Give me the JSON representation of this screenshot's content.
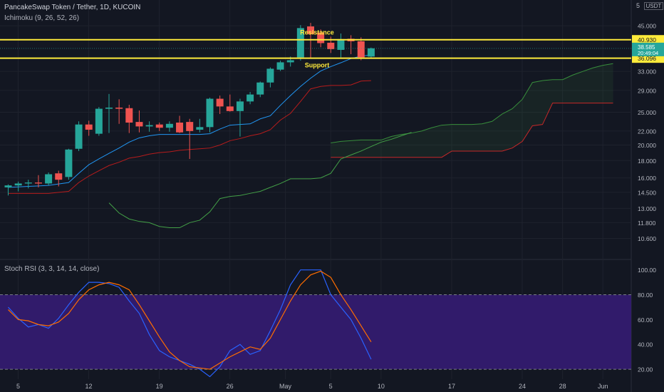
{
  "header": {
    "title": "PancakeSwap Token / Tether, 1D, KUCOIN",
    "indicator": "Ichimoku (9, 26, 52, 26)",
    "scale_top_label": "5",
    "currency": "USDT"
  },
  "oscillator": {
    "label": "Stoch RSI (3, 3, 14, 14, close)"
  },
  "colors": {
    "background": "#131722",
    "up": "#26a69a",
    "down": "#ef5350",
    "conversion": "#2196f3",
    "base": "#b71c1c",
    "lagging": "#43a047",
    "span_a": "#388e3c",
    "span_b": "#c62828",
    "level_line": "#ffeb3b",
    "k_line": "#2962ff",
    "d_line": "#ff6d00",
    "osc_band": "#311b6b"
  },
  "chart_data": [
    {
      "type": "candlestick",
      "x": {
        "tick_labels": [
          "5",
          "12",
          "19",
          "26",
          "May",
          "5",
          "10",
          "17",
          "24",
          "28",
          "Jun"
        ]
      },
      "y": {
        "scale": "log",
        "ylim": [
          9.6,
          47.5
        ],
        "tick_labels": [
          "45.000",
          "33.000",
          "29.000",
          "25.000",
          "22.000",
          "20.000",
          "18.000",
          "16.000",
          "14.500",
          "13.000",
          "11.800",
          "10.600"
        ]
      },
      "candles": [
        {
          "o": 15.0,
          "h": 15.3,
          "l": 14.2,
          "c": 15.2
        },
        {
          "o": 15.2,
          "h": 15.6,
          "l": 14.6,
          "c": 15.4
        },
        {
          "o": 15.4,
          "h": 15.8,
          "l": 14.9,
          "c": 15.5
        },
        {
          "o": 15.5,
          "h": 16.3,
          "l": 15.0,
          "c": 15.4
        },
        {
          "o": 15.4,
          "h": 16.6,
          "l": 15.2,
          "c": 16.4
        },
        {
          "o": 16.5,
          "h": 16.8,
          "l": 15.1,
          "c": 15.8
        },
        {
          "o": 16.1,
          "h": 19.5,
          "l": 15.8,
          "c": 19.4
        },
        {
          "o": 19.5,
          "h": 23.5,
          "l": 19.2,
          "c": 23.0
        },
        {
          "o": 23.0,
          "h": 23.6,
          "l": 21.3,
          "c": 22.2
        },
        {
          "o": 21.6,
          "h": 25.9,
          "l": 21.3,
          "c": 25.6
        },
        {
          "o": 25.6,
          "h": 28.3,
          "l": 21.7,
          "c": 25.8
        },
        {
          "o": 25.8,
          "h": 27.3,
          "l": 23.1,
          "c": 25.6
        },
        {
          "o": 25.7,
          "h": 26.3,
          "l": 21.7,
          "c": 23.3
        },
        {
          "o": 23.4,
          "h": 25.3,
          "l": 21.8,
          "c": 22.7
        },
        {
          "o": 22.7,
          "h": 23.5,
          "l": 21.9,
          "c": 22.9
        },
        {
          "o": 23.0,
          "h": 23.3,
          "l": 22.0,
          "c": 22.5
        },
        {
          "o": 22.5,
          "h": 23.5,
          "l": 21.9,
          "c": 23.1
        },
        {
          "o": 23.3,
          "h": 24.4,
          "l": 21.7,
          "c": 21.8
        },
        {
          "o": 23.4,
          "h": 23.9,
          "l": 18.2,
          "c": 22.0
        },
        {
          "o": 22.2,
          "h": 23.9,
          "l": 21.8,
          "c": 22.6
        },
        {
          "o": 22.6,
          "h": 27.6,
          "l": 21.8,
          "c": 27.4
        },
        {
          "o": 27.4,
          "h": 28.0,
          "l": 24.7,
          "c": 26.0
        },
        {
          "o": 26.0,
          "h": 28.2,
          "l": 25.1,
          "c": 25.2
        },
        {
          "o": 25.2,
          "h": 27.4,
          "l": 21.2,
          "c": 26.9
        },
        {
          "o": 26.9,
          "h": 28.7,
          "l": 26.4,
          "c": 28.2
        },
        {
          "o": 28.2,
          "h": 30.8,
          "l": 27.7,
          "c": 30.6
        },
        {
          "o": 30.6,
          "h": 33.9,
          "l": 29.6,
          "c": 33.6
        },
        {
          "o": 33.4,
          "h": 35.5,
          "l": 33.1,
          "c": 35.1
        },
        {
          "o": 35.1,
          "h": 36.5,
          "l": 34.1,
          "c": 35.6
        },
        {
          "o": 36.3,
          "h": 45.2,
          "l": 35.5,
          "c": 44.3
        },
        {
          "o": 44.8,
          "h": 45.9,
          "l": 36.2,
          "c": 42.5
        },
        {
          "o": 43.0,
          "h": 43.9,
          "l": 38.9,
          "c": 40.0
        },
        {
          "o": 40.1,
          "h": 41.8,
          "l": 37.4,
          "c": 38.4
        },
        {
          "o": 38.2,
          "h": 42.7,
          "l": 36.3,
          "c": 41.1
        },
        {
          "o": 41.2,
          "h": 42.2,
          "l": 37.1,
          "c": 40.5
        },
        {
          "o": 40.5,
          "h": 41.6,
          "l": 35.6,
          "c": 36.3
        },
        {
          "o": 36.5,
          "h": 38.8,
          "l": 36.1,
          "c": 38.6
        }
      ],
      "ichimoku": {
        "conversion_line": [
          15.0,
          15.05,
          15.1,
          15.15,
          15.2,
          15.35,
          15.5,
          16.5,
          17.5,
          18.2,
          18.9,
          19.6,
          20.4,
          21.0,
          21.3,
          21.5,
          21.5,
          21.5,
          21.5,
          21.5,
          21.6,
          22.3,
          22.9,
          23.0,
          23.1,
          23.9,
          24.4,
          26.2,
          28.0,
          29.8,
          31.5,
          33.1,
          34.1,
          35.0,
          36.0,
          36.6,
          36.9
        ],
        "base_line": [
          14.4,
          14.4,
          14.4,
          14.4,
          14.4,
          14.5,
          14.6,
          15.5,
          16.2,
          16.8,
          17.4,
          17.8,
          18.3,
          18.5,
          18.8,
          19.0,
          19.1,
          19.3,
          19.4,
          19.5,
          19.6,
          20.0,
          20.6,
          20.9,
          21.3,
          21.6,
          22.2,
          23.7,
          24.8,
          26.9,
          29.3,
          29.8,
          30.0,
          30.0,
          30.1,
          30.9,
          31.0
        ],
        "lagging_start_index": 10,
        "lagging_span": [
          13.5,
          12.6,
          12.1,
          11.9,
          11.8,
          11.5,
          11.4,
          11.4,
          11.8,
          12.0,
          12.7,
          13.9,
          14.1,
          14.2,
          14.4,
          14.6,
          15.0,
          15.4,
          15.9,
          15.9,
          15.9,
          16.0,
          16.5,
          18.2,
          18.7,
          19.2,
          19.8,
          20.4,
          20.8,
          21.3,
          21.8
        ],
        "cloud_start_index": 32,
        "span_a": [
          20.3,
          20.5,
          20.6,
          20.7,
          20.7,
          20.7,
          21.2,
          21.5,
          21.7,
          22.0,
          22.5,
          22.9,
          23.0,
          23.0,
          23.0,
          23.1,
          23.5,
          24.7,
          25.6,
          27.3,
          30.6,
          31.0,
          31.2,
          31.2,
          32.2,
          33.0,
          33.8,
          34.4,
          34.8
        ],
        "span_b": [
          18.4,
          18.4,
          18.4,
          18.4,
          18.4,
          18.4,
          18.4,
          18.4,
          18.4,
          18.4,
          18.4,
          18.4,
          19.2,
          19.2,
          19.2,
          19.2,
          19.2,
          19.2,
          19.6,
          20.5,
          22.8,
          23.0,
          26.6,
          26.6,
          26.6,
          26.6,
          26.6,
          26.6,
          26.6
        ]
      },
      "levels": [
        {
          "name": "Resistance",
          "value": 40.93,
          "value_label": "40.930"
        },
        {
          "name": "Support",
          "value": 36.096,
          "value_label": "36.096"
        }
      ],
      "price_labels": {
        "last": "38.585",
        "countdown": "20:49:04"
      }
    },
    {
      "type": "line",
      "title": "Stoch RSI (3, 3, 14, 14, close)",
      "ylim": [
        12,
        105
      ],
      "y_tick_labels": [
        "100.00",
        "80.00",
        "60.00",
        "40.00",
        "20.00"
      ],
      "band": [
        20,
        80
      ],
      "series": [
        {
          "name": "K",
          "start_index": 0,
          "values": [
            70,
            61,
            54,
            56,
            53,
            61,
            72,
            82,
            90,
            90,
            89,
            86,
            75,
            65,
            48,
            35,
            30,
            27,
            24,
            20,
            14,
            22,
            35,
            40,
            32,
            35,
            51,
            68,
            88,
            100,
            100,
            100,
            80,
            70,
            60,
            45,
            28
          ]
        },
        {
          "name": "D",
          "start_index": 0,
          "values": [
            68,
            60,
            59,
            56,
            55,
            58,
            65,
            76,
            84,
            88,
            90,
            88,
            84,
            72,
            59,
            46,
            34,
            27,
            22,
            21,
            20,
            25,
            30,
            34,
            38,
            36,
            45,
            60,
            75,
            88,
            96,
            99,
            94,
            80,
            68,
            55,
            42
          ]
        }
      ]
    }
  ]
}
